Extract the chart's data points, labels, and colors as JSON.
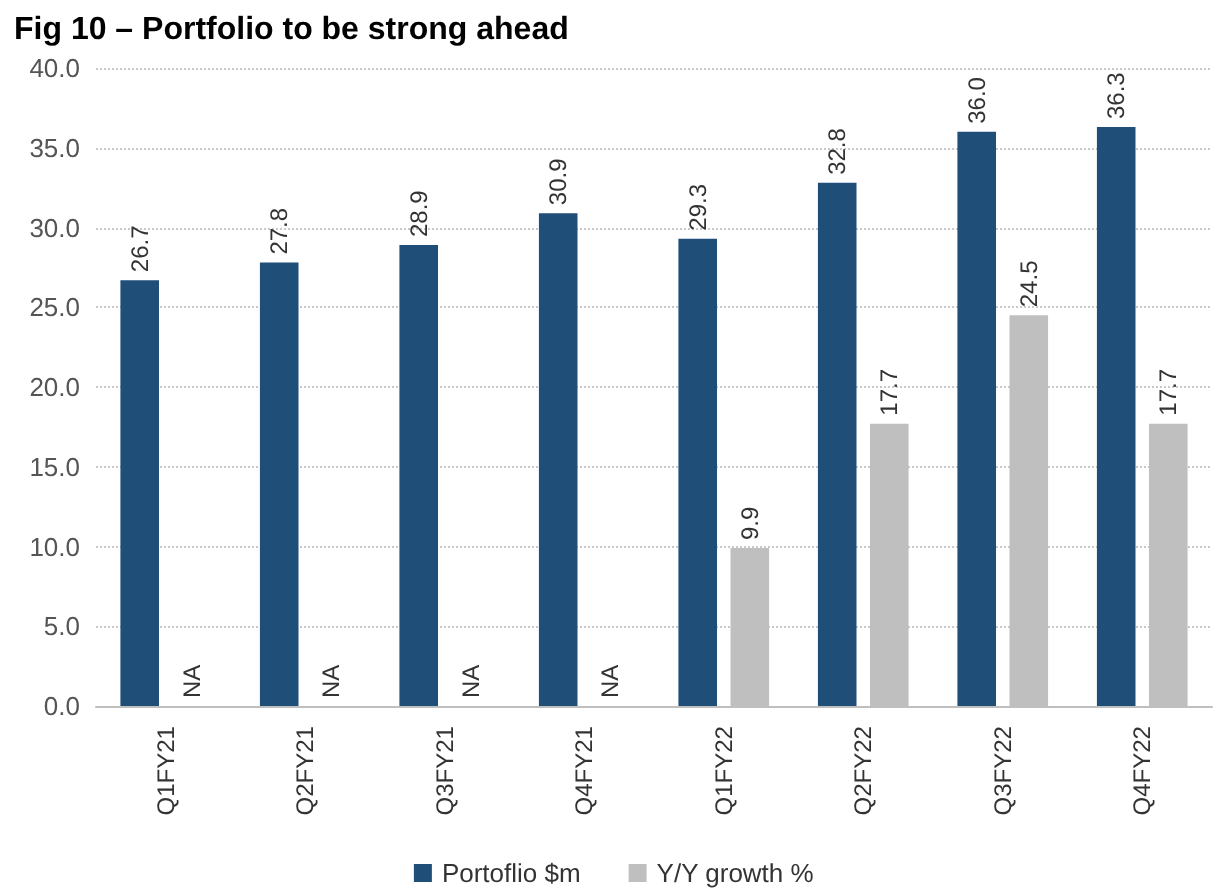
{
  "chart_data": {
    "type": "bar",
    "title": "Fig 10 – Portfolio to be strong ahead",
    "categories": [
      "Q1FY21",
      "Q2FY21",
      "Q3FY21",
      "Q4FY21",
      "Q1FY22",
      "Q2FY22",
      "Q3FY22",
      "Q4FY22"
    ],
    "series": [
      {
        "name": "Portoflio $m",
        "color": "#1f4e79",
        "values": [
          26.7,
          27.8,
          28.9,
          30.9,
          29.3,
          32.8,
          36.0,
          36.3
        ],
        "value_labels": [
          "26.7",
          "27.8",
          "28.9",
          "30.9",
          "29.3",
          "32.8",
          "36.0",
          "36.3"
        ]
      },
      {
        "name": "Y/Y growth %",
        "color": "#bfbfbf",
        "values": [
          null,
          null,
          null,
          null,
          9.9,
          17.7,
          24.5,
          17.7
        ],
        "value_labels": [
          "NA",
          "NA",
          "NA",
          "NA",
          "9.9",
          "17.7",
          "24.5",
          "17.7"
        ]
      }
    ],
    "ylim": [
      0,
      40
    ],
    "yticks": [
      {
        "value": 0,
        "label": "0.0"
      },
      {
        "value": 5,
        "label": "5.0"
      },
      {
        "value": 10,
        "label": "10.0"
      },
      {
        "value": 15,
        "label": "15.0"
      },
      {
        "value": 20,
        "label": "20.0"
      },
      {
        "value": 25,
        "label": "25.0"
      },
      {
        "value": 30,
        "label": "30.0"
      },
      {
        "value": 35,
        "label": "35.0"
      },
      {
        "value": 40,
        "label": "40.0"
      }
    ],
    "grid": "y",
    "legend": "bottom"
  }
}
